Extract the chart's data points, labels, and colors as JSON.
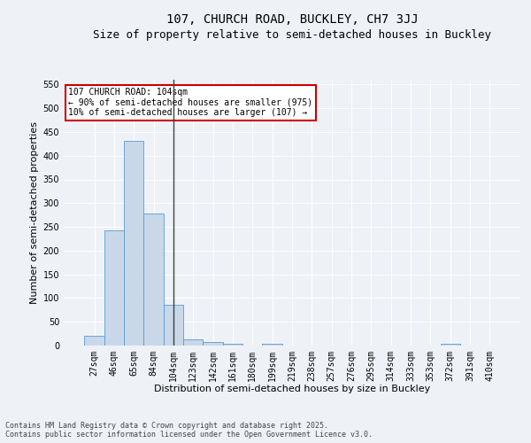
{
  "title_line1": "107, CHURCH ROAD, BUCKLEY, CH7 3JJ",
  "title_line2": "Size of property relative to semi-detached houses in Buckley",
  "xlabel": "Distribution of semi-detached houses by size in Buckley",
  "ylabel": "Number of semi-detached properties",
  "categories": [
    "27sqm",
    "46sqm",
    "65sqm",
    "84sqm",
    "104sqm",
    "123sqm",
    "142sqm",
    "161sqm",
    "180sqm",
    "199sqm",
    "219sqm",
    "238sqm",
    "257sqm",
    "276sqm",
    "295sqm",
    "314sqm",
    "333sqm",
    "353sqm",
    "372sqm",
    "391sqm",
    "410sqm"
  ],
  "values": [
    20,
    243,
    432,
    278,
    85,
    13,
    8,
    4,
    0,
    4,
    0,
    0,
    0,
    0,
    0,
    0,
    0,
    0,
    4,
    0,
    0
  ],
  "bar_color": "#c8d8e8",
  "bar_edge_color": "#5b9bd5",
  "vline_index": 4,
  "vline_color": "#404040",
  "annotation_text": "107 CHURCH ROAD: 104sqm\n← 90% of semi-detached houses are smaller (975)\n10% of semi-detached houses are larger (107) →",
  "annotation_box_color": "#ffffff",
  "annotation_box_edge": "#cc0000",
  "ylim": [
    0,
    560
  ],
  "yticks": [
    0,
    50,
    100,
    150,
    200,
    250,
    300,
    350,
    400,
    450,
    500,
    550
  ],
  "footer": "Contains HM Land Registry data © Crown copyright and database right 2025.\nContains public sector information licensed under the Open Government Licence v3.0.",
  "bg_color": "#eef2f7",
  "grid_color": "#ffffff",
  "title_fontsize": 10,
  "subtitle_fontsize": 9,
  "axis_label_fontsize": 8,
  "tick_fontsize": 7,
  "footer_fontsize": 6,
  "annotation_fontsize": 7
}
